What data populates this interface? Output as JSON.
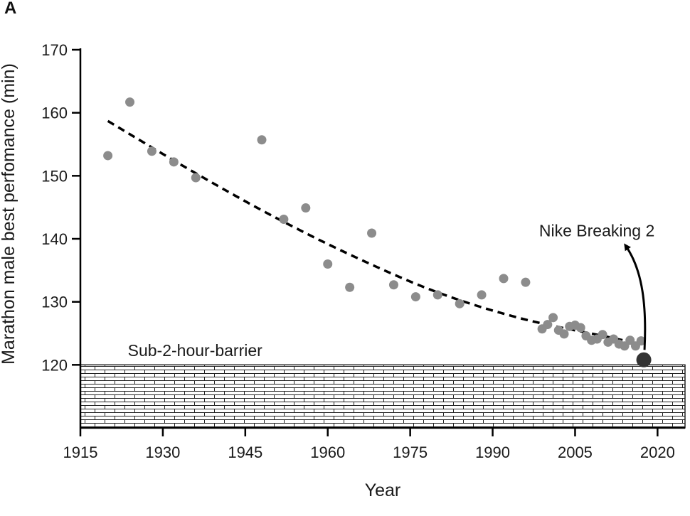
{
  "panel_label": "A",
  "chart_data": {
    "type": "scatter",
    "xlabel": "Year",
    "ylabel": "Marathon male best perfomance (min)",
    "xlim": [
      1915,
      2025
    ],
    "ylim": [
      110,
      170
    ],
    "x_ticks": [
      1915,
      1930,
      1945,
      1960,
      1975,
      1990,
      2005,
      2020
    ],
    "y_ticks": [
      120,
      130,
      140,
      150,
      160,
      170
    ],
    "grid": false,
    "series": [
      {
        "color": "#8c8c8c",
        "points": [
          [
            1920,
            153.2
          ],
          [
            1924,
            161.7
          ],
          [
            1928,
            153.9
          ],
          [
            1932,
            152.2
          ],
          [
            1936,
            149.7
          ],
          [
            1948,
            155.7
          ],
          [
            1952,
            143.1
          ],
          [
            1956,
            144.9
          ],
          [
            1960,
            136.0
          ],
          [
            1964,
            132.3
          ],
          [
            1968,
            140.9
          ],
          [
            1972,
            132.7
          ],
          [
            1976,
            130.8
          ],
          [
            1980,
            131.1
          ],
          [
            1984,
            129.7
          ],
          [
            1988,
            131.1
          ],
          [
            1992,
            133.7
          ],
          [
            1996,
            133.1
          ],
          [
            1999,
            125.7
          ],
          [
            2000,
            126.4
          ],
          [
            2001,
            127.5
          ],
          [
            2002,
            125.5
          ],
          [
            2003,
            124.9
          ],
          [
            2004,
            126.1
          ],
          [
            2005,
            126.3
          ],
          [
            2006,
            125.9
          ],
          [
            2007,
            124.6
          ],
          [
            2008,
            123.9
          ],
          [
            2009,
            124.1
          ],
          [
            2010,
            124.8
          ],
          [
            2011,
            123.6
          ],
          [
            2012,
            124.1
          ],
          [
            2013,
            123.3
          ],
          [
            2014,
            123.0
          ],
          [
            2015,
            123.9
          ],
          [
            2016,
            123.0
          ],
          [
            2017,
            123.8
          ]
        ]
      }
    ],
    "trend_line": {
      "style": "dashed",
      "color": "#000000",
      "points": [
        [
          1920,
          158.7
        ],
        [
          1935,
          150.9
        ],
        [
          1950,
          143.6
        ],
        [
          1965,
          137.1
        ],
        [
          1980,
          131.5
        ],
        [
          1995,
          127.4
        ],
        [
          2010,
          124.6
        ],
        [
          2017,
          123.3
        ]
      ]
    },
    "highlight_point": {
      "x": 2017.5,
      "y": 120.8,
      "color": "#333333"
    },
    "annotations": [
      {
        "text": "Nike Breaking 2",
        "x": 2010,
        "y": 141.3
      },
      {
        "text": "Sub-2-hour-barrier",
        "x": 1920,
        "y": 121.6
      }
    ],
    "barrier_region": {
      "y_top": 120
    }
  }
}
